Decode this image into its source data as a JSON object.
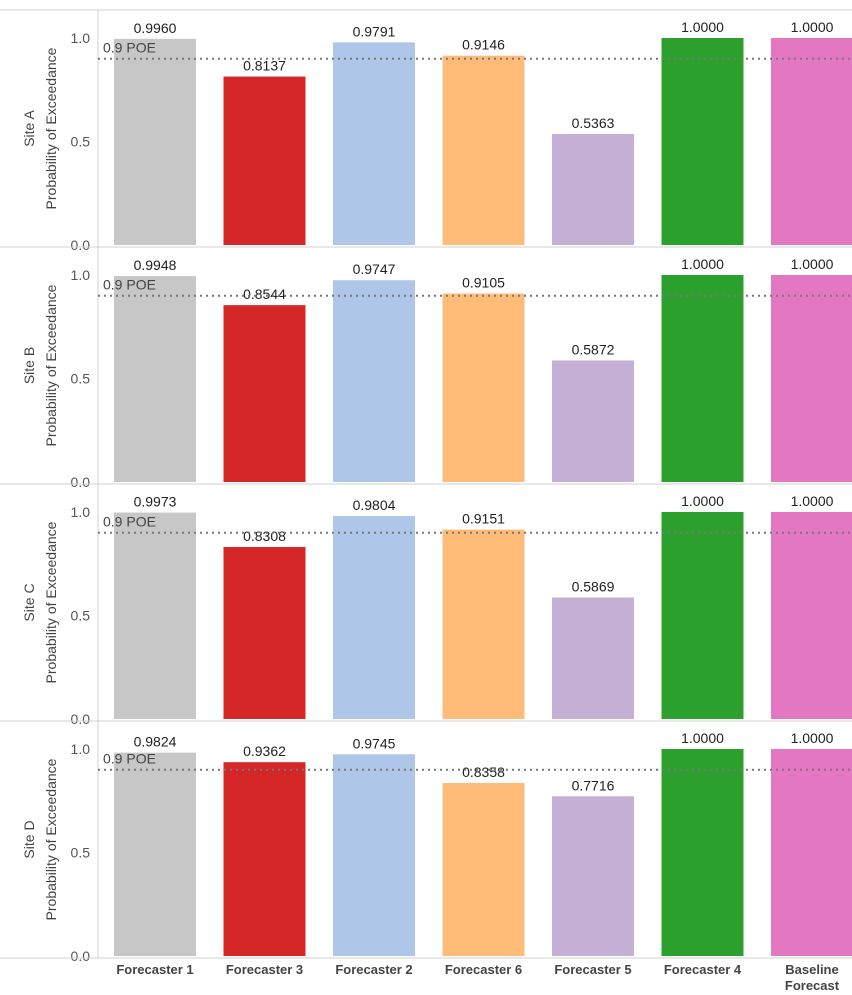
{
  "chart_data": {
    "type": "bar",
    "ylabel": "Probability of Exceedance",
    "ylim": [
      0,
      1.0
    ],
    "yticks": [
      "0.0",
      "0.5",
      "1.0"
    ],
    "ytick_values": [
      0,
      0.5,
      1.0
    ],
    "reference_line": {
      "value": 0.9,
      "label": "0.9 POE"
    },
    "categories": [
      "Forecaster 1",
      "Forecaster 3",
      "Forecaster 2",
      "Forecaster 6",
      "Forecaster 5",
      "Forecaster 4",
      "Baseline Forecast"
    ],
    "colors": [
      "#c7c7c7",
      "#d62728",
      "#aec7e8",
      "#ffbb78",
      "#c5b0d5",
      "#2ca02c",
      "#e377c2"
    ],
    "panels": [
      {
        "name": "Site A",
        "values": [
          0.996,
          0.8137,
          0.9791,
          0.9146,
          0.5363,
          1.0,
          1.0
        ],
        "labels": [
          "0.9960",
          "0.8137",
          "0.9791",
          "0.9146",
          "0.5363",
          "1.0000",
          "1.0000"
        ]
      },
      {
        "name": "Site B",
        "values": [
          0.9948,
          0.8544,
          0.9747,
          0.9105,
          0.5872,
          1.0,
          1.0
        ],
        "labels": [
          "0.9948",
          "0.8544",
          "0.9747",
          "0.9105",
          "0.5872",
          "1.0000",
          "1.0000"
        ]
      },
      {
        "name": "Site C",
        "values": [
          0.9973,
          0.8308,
          0.9804,
          0.9151,
          0.5869,
          1.0,
          1.0
        ],
        "labels": [
          "0.9973",
          "0.8308",
          "0.9804",
          "0.9151",
          "0.5869",
          "1.0000",
          "1.0000"
        ]
      },
      {
        "name": "Site D",
        "values": [
          0.9824,
          0.9362,
          0.9745,
          0.8358,
          0.7716,
          1.0,
          1.0
        ],
        "labels": [
          "0.9824",
          "0.9362",
          "0.9745",
          "0.8358",
          "0.7716",
          "1.0000",
          "1.0000"
        ]
      }
    ]
  }
}
